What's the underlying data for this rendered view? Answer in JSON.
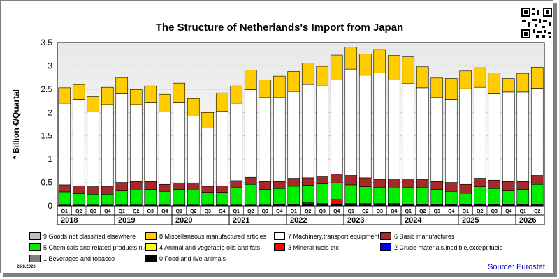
{
  "header": {
    "title": "The Structure of Netherlands's Import from Japan",
    "date": "28.8.2026",
    "source": "Source: Eurostat"
  },
  "colors": {
    "food": "#000000",
    "beverages": "#808080",
    "crude": "#0000ff",
    "fuels": "#ff0000",
    "oils": "#ffff00",
    "chemicals": "#00ee00",
    "basic": "#a52a2a",
    "machinery": "#ffffff",
    "misc": "#ffcc00",
    "other": "#c0c0c0",
    "source_text": "#0000cc"
  },
  "legend": [
    {
      "key": "other",
      "label": "9 Goods not classified elsewhere"
    },
    {
      "key": "misc",
      "label": "8 Miscellaneous manufactured articles"
    },
    {
      "key": "machinery",
      "label": "7 Machinery,transport equipment"
    },
    {
      "key": "basic",
      "label": "6 Basic manufactures"
    },
    {
      "key": "chemicals",
      "label": "5 Chemicals and related products,n.e.s."
    },
    {
      "key": "oils",
      "label": "4 Animal and vegetable oils and fats"
    },
    {
      "key": "fuels",
      "label": "3 Mineral fuels etc"
    },
    {
      "key": "crude",
      "label": "2 Crude materials,inedible,except fuels"
    },
    {
      "key": "beverages",
      "label": "1 Beverages and tobacco"
    },
    {
      "key": "food",
      "label": "0 Food and live animals"
    }
  ],
  "chart_data": {
    "type": "bar",
    "stacked": true,
    "title": "The Structure of Netherlands's Import from Japan",
    "ylabel": "* Billion €/Quartal",
    "ylim": [
      0,
      3.5
    ],
    "yticks": [
      "0",
      "0.5",
      "1",
      "1.5",
      "2",
      "2.5",
      "3",
      "3.5"
    ],
    "grid": true,
    "legend_position": "bottom",
    "years": [
      "2018",
      "2019",
      "2020",
      "2021",
      "2022",
      "2023",
      "2024",
      "2025",
      "2026"
    ],
    "categories": [
      "Q1",
      "Q2",
      "Q3",
      "Q4",
      "Q1",
      "Q2",
      "Q3",
      "Q4",
      "Q1",
      "Q2",
      "Q3",
      "Q4",
      "Q1",
      "Q2",
      "Q3",
      "Q4",
      "Q1",
      "Q2",
      "Q3",
      "Q4",
      "Q1",
      "Q2",
      "Q3",
      "Q4",
      "Q1",
      "Q2",
      "Q3",
      "Q4",
      "Q1",
      "Q2",
      "Q3",
      "Q4",
      "Q1",
      "Q2"
    ],
    "series": [
      {
        "key": "food",
        "name": "0 Food and live animals",
        "values": [
          0.02,
          0.02,
          0.02,
          0.02,
          0.02,
          0.02,
          0.02,
          0.02,
          0.02,
          0.02,
          0.02,
          0.02,
          0.02,
          0.02,
          0.02,
          0.03,
          0.03,
          0.05,
          0.05,
          0.04,
          0.05,
          0.05,
          0.05,
          0.05,
          0.04,
          0.04,
          0.04,
          0.04,
          0.04,
          0.04,
          0.04,
          0.04,
          0.04,
          0.04
        ]
      },
      {
        "key": "beverages",
        "name": "1 Beverages and tobacco",
        "values": [
          0,
          0,
          0,
          0,
          0,
          0,
          0,
          0,
          0,
          0,
          0,
          0,
          0,
          0,
          0,
          0,
          0,
          0.02,
          0,
          0,
          0,
          0,
          0,
          0,
          0,
          0,
          0,
          0,
          0,
          0,
          0,
          0,
          0,
          0
        ]
      },
      {
        "key": "crude",
        "name": "2 Crude materials,inedible,except fuels",
        "values": [
          0,
          0,
          0,
          0,
          0,
          0,
          0,
          0,
          0,
          0,
          0,
          0,
          0,
          0,
          0,
          0,
          0,
          0,
          0,
          0,
          0,
          0,
          0,
          0,
          0,
          0,
          0,
          0,
          0,
          0,
          0,
          0,
          0,
          0
        ]
      },
      {
        "key": "fuels",
        "name": "3 Mineral fuels etc",
        "values": [
          0,
          0,
          0,
          0,
          0,
          0,
          0,
          0,
          0,
          0,
          0,
          0,
          0,
          0,
          0,
          0,
          0,
          0,
          0,
          0.1,
          0,
          0,
          0,
          0,
          0,
          0,
          0,
          0,
          0,
          0,
          0,
          0,
          0,
          0
        ]
      },
      {
        "key": "oils",
        "name": "4 Animal and vegetable oils and fats",
        "values": [
          0,
          0,
          0,
          0,
          0,
          0,
          0,
          0,
          0,
          0,
          0,
          0,
          0,
          0,
          0,
          0,
          0,
          0,
          0,
          0,
          0,
          0,
          0,
          0,
          0,
          0,
          0,
          0,
          0,
          0,
          0,
          0,
          0,
          0
        ]
      },
      {
        "key": "chemicals",
        "name": "5 Chemicals and related products,n.e.s.",
        "values": [
          0.28,
          0.24,
          0.23,
          0.23,
          0.3,
          0.32,
          0.33,
          0.29,
          0.33,
          0.32,
          0.27,
          0.27,
          0.38,
          0.44,
          0.33,
          0.34,
          0.39,
          0.37,
          0.42,
          0.35,
          0.4,
          0.36,
          0.34,
          0.33,
          0.35,
          0.36,
          0.31,
          0.27,
          0.23,
          0.37,
          0.33,
          0.28,
          0.31,
          0.42
        ]
      },
      {
        "key": "basic",
        "name": "6 Basic manufactures",
        "values": [
          0.15,
          0.17,
          0.16,
          0.17,
          0.18,
          0.18,
          0.17,
          0.15,
          0.14,
          0.15,
          0.13,
          0.14,
          0.14,
          0.15,
          0.17,
          0.15,
          0.17,
          0.16,
          0.15,
          0.19,
          0.2,
          0.19,
          0.18,
          0.18,
          0.17,
          0.17,
          0.17,
          0.19,
          0.19,
          0.18,
          0.18,
          0.2,
          0.17,
          0.19
        ]
      },
      {
        "key": "machinery",
        "name": "7 Machinery,transport equipment",
        "values": [
          1.75,
          1.85,
          1.6,
          1.75,
          1.9,
          1.65,
          1.7,
          1.55,
          1.73,
          1.43,
          1.25,
          1.6,
          1.66,
          1.88,
          1.8,
          1.8,
          1.86,
          2.0,
          1.95,
          2.02,
          2.28,
          2.2,
          2.28,
          2.14,
          2.06,
          1.96,
          1.8,
          1.78,
          2.05,
          1.95,
          1.85,
          1.92,
          1.92,
          1.87
        ]
      },
      {
        "key": "misc",
        "name": "8 Miscellaneous manufactured articles",
        "values": [
          0.33,
          0.32,
          0.33,
          0.37,
          0.35,
          0.32,
          0.35,
          0.38,
          0.41,
          0.38,
          0.33,
          0.39,
          0.37,
          0.42,
          0.38,
          0.46,
          0.43,
          0.46,
          0.42,
          0.53,
          0.47,
          0.45,
          0.5,
          0.52,
          0.57,
          0.45,
          0.42,
          0.45,
          0.38,
          0.42,
          0.45,
          0.29,
          0.4,
          0.45
        ]
      },
      {
        "key": "other",
        "name": "9 Goods not classified elsewhere",
        "values": [
          0,
          0,
          0,
          0,
          0,
          0,
          0,
          0,
          0,
          0,
          0,
          0,
          0,
          0,
          0,
          0,
          0,
          0,
          0,
          0,
          0,
          0,
          0,
          0,
          0,
          0,
          0,
          0,
          0,
          0,
          0,
          0,
          0,
          0
        ]
      }
    ]
  }
}
